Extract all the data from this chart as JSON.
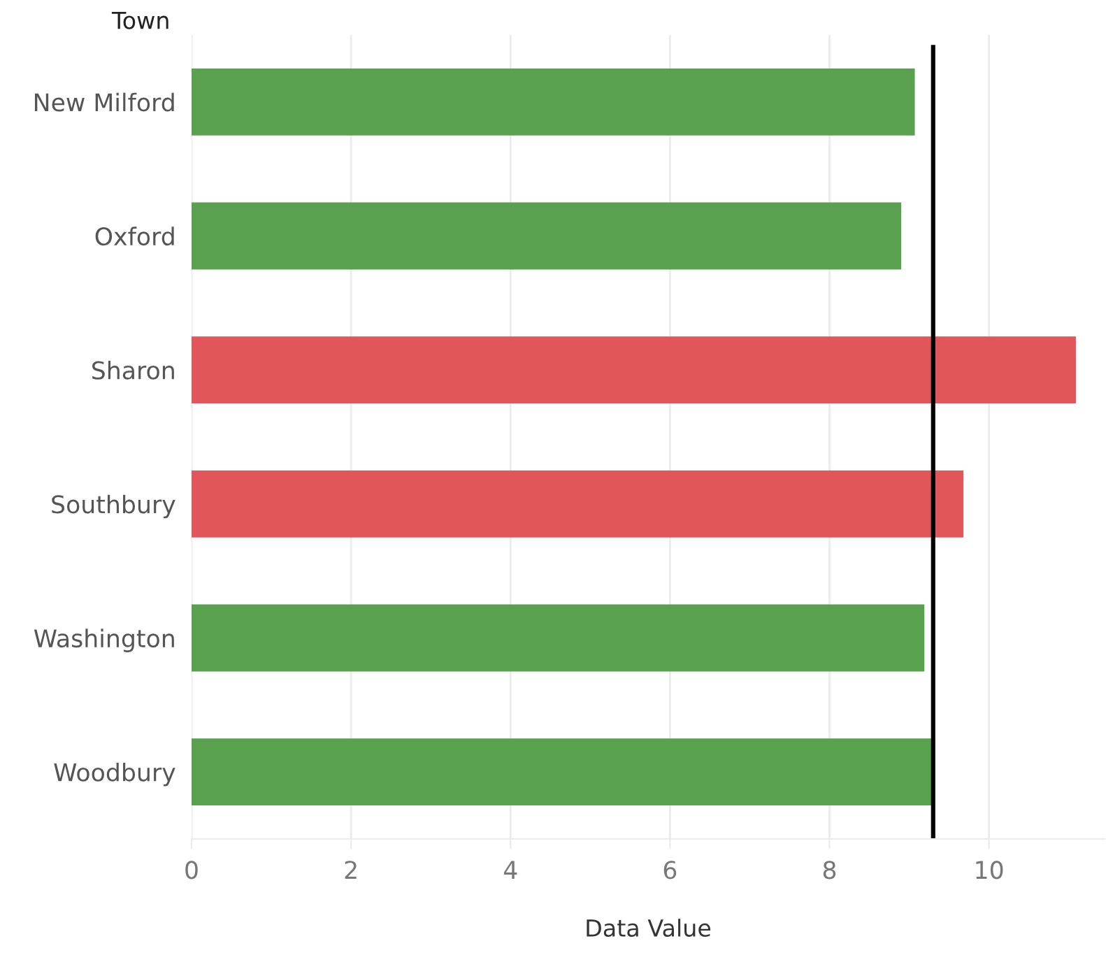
{
  "chart_data": {
    "type": "bar",
    "orientation": "horizontal",
    "ylabel": "Town",
    "xlabel": "Data Value",
    "categories": [
      "New Milford",
      "Oxford",
      "Sharon",
      "Southbury",
      "Washington",
      "Woodbury"
    ],
    "values": [
      9.07,
      8.9,
      11.09,
      9.68,
      9.19,
      9.29
    ],
    "colors": [
      "#59a14f",
      "#59a14f",
      "#e15759",
      "#e15759",
      "#59a14f",
      "#59a14f"
    ],
    "xlim": [
      0,
      11.45
    ],
    "xticks": [
      0,
      2,
      4,
      6,
      8,
      10
    ],
    "grid": "x",
    "ref_lines": [
      {
        "axis": "x",
        "value": 9.3,
        "color": "#000000"
      }
    ]
  }
}
